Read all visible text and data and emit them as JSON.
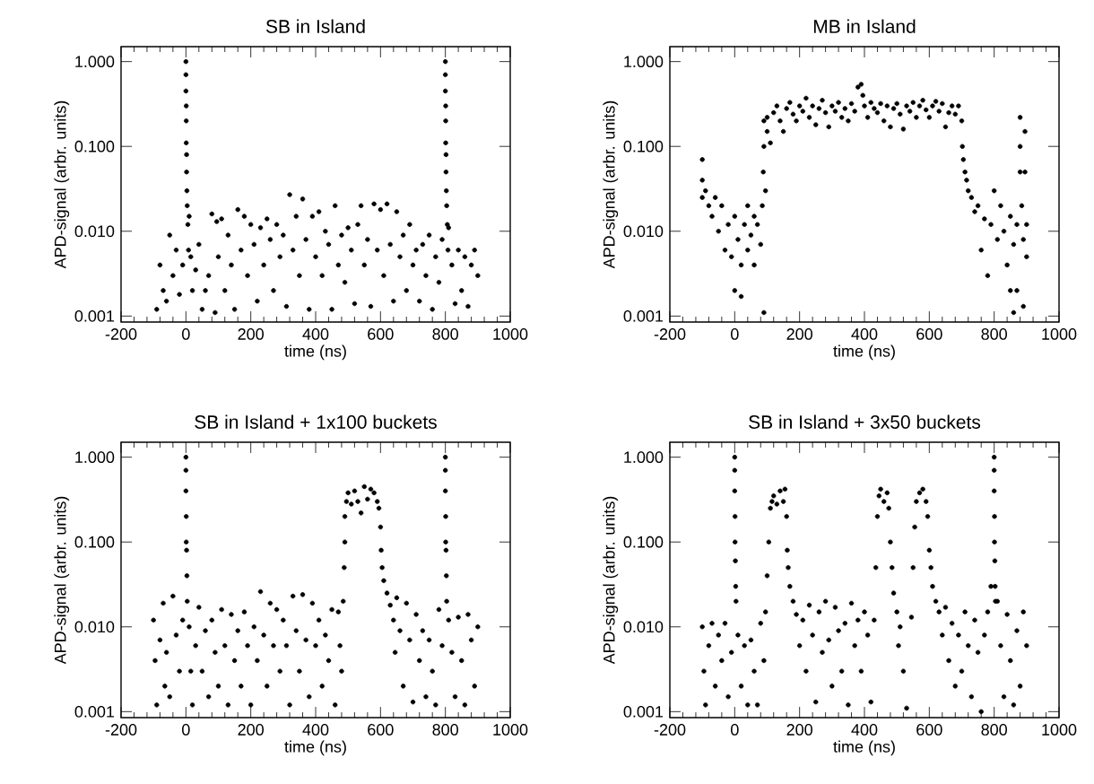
{
  "chart_data": [
    {
      "type": "scatter",
      "title": "SB in Island",
      "xlabel": "time (ns)",
      "ylabel": "APD-signal (arbr. units)",
      "log": "y",
      "marker": "circle",
      "xlim": [
        -200,
        1000
      ],
      "ylim": [
        0.00085,
        1.5
      ],
      "xticks": [
        -200,
        0,
        200,
        400,
        600,
        800,
        1000
      ],
      "yticks": [
        {
          "value": 0.001,
          "label": "0.001"
        },
        {
          "value": 0.01,
          "label": "0.010"
        },
        {
          "value": 0.1,
          "label": "0.100"
        },
        {
          "value": 1,
          "label": "1.000"
        }
      ],
      "series": [
        {
          "color": "#000000",
          "x": [
            -90,
            -80,
            -70,
            -60,
            -50,
            -40,
            -30,
            -20,
            -10,
            0,
            0,
            0,
            1,
            1,
            1,
            2,
            2,
            3,
            4,
            6,
            8,
            10,
            15,
            20,
            30,
            40,
            50,
            60,
            70,
            80,
            90,
            95,
            100,
            110,
            120,
            130,
            140,
            150,
            160,
            170,
            180,
            190,
            200,
            210,
            220,
            230,
            240,
            250,
            260,
            270,
            280,
            290,
            300,
            310,
            320,
            330,
            340,
            350,
            360,
            370,
            380,
            390,
            400,
            410,
            420,
            430,
            440,
            450,
            460,
            470,
            480,
            490,
            500,
            510,
            520,
            530,
            540,
            550,
            560,
            570,
            580,
            590,
            600,
            610,
            620,
            630,
            640,
            650,
            660,
            670,
            680,
            690,
            700,
            710,
            720,
            730,
            740,
            750,
            760,
            770,
            780,
            790,
            800,
            800,
            800,
            801,
            801,
            801,
            802,
            802,
            803,
            804,
            806,
            808,
            810,
            820,
            830,
            840,
            850,
            860,
            870,
            880,
            890,
            900
          ],
          "values": [
            0.0012,
            0.004,
            0.002,
            0.0015,
            0.009,
            0.003,
            0.006,
            0.0018,
            0.004,
            1.0,
            0.7,
            0.45,
            0.3,
            0.2,
            0.11,
            0.08,
            0.05,
            0.03,
            0.02,
            0.012,
            0.006,
            0.015,
            0.005,
            0.002,
            0.0035,
            0.007,
            0.0012,
            0.002,
            0.003,
            0.016,
            0.0011,
            0.013,
            0.005,
            0.014,
            0.002,
            0.009,
            0.004,
            0.0012,
            0.018,
            0.006,
            0.015,
            0.003,
            0.012,
            0.007,
            0.0015,
            0.011,
            0.004,
            0.014,
            0.008,
            0.002,
            0.012,
            0.005,
            0.009,
            0.0013,
            0.027,
            0.006,
            0.015,
            0.003,
            0.024,
            0.008,
            0.0012,
            0.015,
            0.005,
            0.017,
            0.003,
            0.01,
            0.007,
            0.0012,
            0.02,
            0.004,
            0.009,
            0.0025,
            0.011,
            0.006,
            0.0014,
            0.012,
            0.02,
            0.004,
            0.008,
            0.0013,
            0.021,
            0.006,
            0.018,
            0.003,
            0.021,
            0.007,
            0.0015,
            0.017,
            0.005,
            0.009,
            0.002,
            0.012,
            0.004,
            0.006,
            0.0015,
            0.007,
            0.003,
            0.009,
            0.0012,
            0.005,
            0.0025,
            0.008,
            1.0,
            0.7,
            0.45,
            0.3,
            0.2,
            0.11,
            0.08,
            0.05,
            0.03,
            0.02,
            0.012,
            0.006,
            0.011,
            0.004,
            0.0014,
            0.006,
            0.002,
            0.005,
            0.0013,
            0.004,
            0.006,
            0.003
          ]
        }
      ]
    },
    {
      "type": "scatter",
      "title": "MB in Island",
      "xlabel": "time (ns)",
      "ylabel": "APD-signal (arbr. units)",
      "log": "y",
      "marker": "circle",
      "xlim": [
        -200,
        1000
      ],
      "ylim": [
        0.00085,
        1.5
      ],
      "xticks": [
        -200,
        0,
        200,
        400,
        600,
        800,
        1000
      ],
      "yticks": [
        {
          "value": 0.001,
          "label": "0.001"
        },
        {
          "value": 0.01,
          "label": "0.010"
        },
        {
          "value": 0.1,
          "label": "0.100"
        },
        {
          "value": 1,
          "label": "1.000"
        }
      ],
      "series": [
        {
          "color": "#000000",
          "x": [
            -100,
            -100,
            -100,
            -90,
            -80,
            -70,
            -60,
            -50,
            -40,
            -30,
            -20,
            -10,
            0,
            0,
            10,
            20,
            20,
            30,
            40,
            40,
            50,
            60,
            60,
            70,
            80,
            85,
            88,
            90,
            90,
            90,
            95,
            100,
            100,
            110,
            120,
            130,
            140,
            150,
            160,
            170,
            180,
            190,
            200,
            210,
            220,
            230,
            240,
            250,
            260,
            270,
            280,
            290,
            300,
            310,
            320,
            330,
            340,
            350,
            360,
            370,
            380,
            390,
            395,
            400,
            410,
            420,
            430,
            440,
            450,
            460,
            470,
            480,
            490,
            500,
            510,
            520,
            530,
            540,
            550,
            560,
            570,
            580,
            590,
            600,
            610,
            620,
            630,
            640,
            650,
            660,
            670,
            680,
            690,
            700,
            702,
            705,
            710,
            715,
            720,
            730,
            740,
            750,
            760,
            770,
            780,
            790,
            800,
            810,
            820,
            830,
            840,
            850,
            850,
            860,
            860,
            870,
            870,
            880,
            880,
            880,
            885,
            890,
            890,
            895,
            895,
            900,
            900
          ],
          "values": [
            0.07,
            0.04,
            0.025,
            0.03,
            0.02,
            0.015,
            0.025,
            0.01,
            0.02,
            0.006,
            0.012,
            0.005,
            0.015,
            0.002,
            0.008,
            0.004,
            0.0017,
            0.012,
            0.006,
            0.02,
            0.009,
            0.004,
            0.015,
            0.012,
            0.007,
            0.02,
            0.05,
            0.2,
            0.1,
            0.0011,
            0.03,
            0.15,
            0.22,
            0.11,
            0.25,
            0.3,
            0.2,
            0.15,
            0.28,
            0.33,
            0.24,
            0.2,
            0.3,
            0.26,
            0.37,
            0.22,
            0.3,
            0.18,
            0.28,
            0.35,
            0.25,
            0.17,
            0.3,
            0.26,
            0.33,
            0.22,
            0.28,
            0.2,
            0.32,
            0.26,
            0.5,
            0.54,
            0.4,
            0.3,
            0.22,
            0.33,
            0.28,
            0.25,
            0.32,
            0.2,
            0.3,
            0.17,
            0.28,
            0.32,
            0.24,
            0.16,
            0.3,
            0.26,
            0.33,
            0.22,
            0.3,
            0.35,
            0.27,
            0.22,
            0.3,
            0.34,
            0.26,
            0.32,
            0.17,
            0.25,
            0.3,
            0.24,
            0.3,
            0.2,
            0.1,
            0.07,
            0.05,
            0.04,
            0.03,
            0.025,
            0.017,
            0.02,
            0.006,
            0.014,
            0.003,
            0.012,
            0.03,
            0.008,
            0.02,
            0.01,
            0.004,
            0.015,
            0.002,
            0.007,
            0.0011,
            0.012,
            0.002,
            0.22,
            0.1,
            0.05,
            0.02,
            0.008,
            0.0013,
            0.15,
            0.05,
            0.012,
            0.005
          ]
        }
      ]
    },
    {
      "type": "scatter",
      "title": "SB in Island + 1x100 buckets",
      "xlabel": "time (ns)",
      "ylabel": "APD-signal (arbr. units)",
      "log": "y",
      "marker": "circle",
      "xlim": [
        -200,
        1000
      ],
      "ylim": [
        0.00085,
        1.5
      ],
      "xticks": [
        -200,
        0,
        200,
        400,
        600,
        800,
        1000
      ],
      "yticks": [
        {
          "value": 0.001,
          "label": "0.001"
        },
        {
          "value": 0.01,
          "label": "0.010"
        },
        {
          "value": 0.1,
          "label": "0.100"
        },
        {
          "value": 1,
          "label": "1.000"
        }
      ],
      "series": [
        {
          "color": "#000000",
          "x": [
            -100,
            -95,
            -90,
            -80,
            -70,
            -65,
            -60,
            -50,
            -40,
            -30,
            -20,
            -10,
            0,
            0,
            0,
            1,
            1,
            2,
            3,
            4,
            10,
            15,
            20,
            30,
            40,
            50,
            60,
            70,
            80,
            90,
            100,
            110,
            120,
            130,
            140,
            150,
            160,
            170,
            180,
            190,
            200,
            210,
            220,
            230,
            240,
            250,
            260,
            270,
            280,
            290,
            300,
            310,
            320,
            330,
            340,
            350,
            360,
            370,
            380,
            390,
            400,
            410,
            420,
            430,
            440,
            450,
            460,
            470,
            475,
            480,
            485,
            488,
            490,
            490,
            495,
            500,
            510,
            520,
            530,
            540,
            550,
            560,
            570,
            580,
            590,
            595,
            600,
            602,
            605,
            610,
            620,
            630,
            640,
            645,
            650,
            660,
            670,
            680,
            690,
            700,
            710,
            720,
            730,
            740,
            750,
            760,
            770,
            780,
            790,
            800,
            800,
            800,
            801,
            801,
            802,
            803,
            804,
            810,
            820,
            830,
            840,
            850,
            860,
            870,
            880,
            890,
            900
          ],
          "values": [
            0.012,
            0.004,
            0.0012,
            0.007,
            0.019,
            0.002,
            0.005,
            0.0015,
            0.023,
            0.008,
            0.003,
            0.012,
            1.0,
            0.7,
            0.4,
            0.2,
            0.1,
            0.08,
            0.04,
            0.02,
            0.01,
            0.003,
            0.0012,
            0.006,
            0.017,
            0.003,
            0.009,
            0.0015,
            0.012,
            0.005,
            0.002,
            0.016,
            0.006,
            0.0012,
            0.014,
            0.004,
            0.009,
            0.002,
            0.015,
            0.006,
            0.0012,
            0.01,
            0.004,
            0.026,
            0.008,
            0.002,
            0.019,
            0.006,
            0.016,
            0.003,
            0.012,
            0.006,
            0.0012,
            0.023,
            0.009,
            0.003,
            0.024,
            0.007,
            0.0015,
            0.019,
            0.006,
            0.012,
            0.002,
            0.008,
            0.004,
            0.016,
            0.0012,
            0.015,
            0.006,
            0.003,
            0.02,
            0.05,
            0.1,
            0.2,
            0.3,
            0.38,
            0.28,
            0.4,
            0.3,
            0.22,
            0.45,
            0.32,
            0.42,
            0.38,
            0.3,
            0.25,
            0.15,
            0.08,
            0.05,
            0.035,
            0.025,
            0.018,
            0.012,
            0.005,
            0.022,
            0.009,
            0.002,
            0.019,
            0.007,
            0.0013,
            0.014,
            0.004,
            0.009,
            0.0015,
            0.007,
            0.003,
            0.0012,
            0.016,
            0.006,
            1.0,
            0.7,
            0.4,
            0.2,
            0.1,
            0.08,
            0.04,
            0.02,
            0.012,
            0.005,
            0.0015,
            0.013,
            0.004,
            0.0012,
            0.014,
            0.007,
            0.002,
            0.01
          ]
        }
      ]
    },
    {
      "type": "scatter",
      "title": "SB in Island + 3x50 buckets",
      "xlabel": "time (ns)",
      "ylabel": "APD-signal (arbr. units)",
      "log": "y",
      "marker": "circle",
      "xlim": [
        -200,
        1000
      ],
      "ylim": [
        0.00085,
        1.5
      ],
      "xticks": [
        -200,
        0,
        200,
        400,
        600,
        800,
        1000
      ],
      "yticks": [
        {
          "value": 0.001,
          "label": "0.001"
        },
        {
          "value": 0.01,
          "label": "0.010"
        },
        {
          "value": 0.1,
          "label": "0.100"
        },
        {
          "value": 1,
          "label": "1.000"
        }
      ],
      "series": [
        {
          "color": "#000000",
          "x": [
            -100,
            -95,
            -90,
            -80,
            -70,
            -60,
            -50,
            -40,
            -30,
            -20,
            -10,
            0,
            0,
            0,
            1,
            1,
            2,
            3,
            4,
            10,
            20,
            30,
            40,
            50,
            60,
            70,
            80,
            90,
            95,
            100,
            105,
            110,
            115,
            120,
            130,
            140,
            150,
            155,
            160,
            162,
            165,
            170,
            180,
            190,
            200,
            210,
            220,
            230,
            240,
            250,
            260,
            270,
            280,
            290,
            300,
            310,
            320,
            330,
            340,
            350,
            360,
            370,
            380,
            390,
            400,
            410,
            420,
            430,
            435,
            440,
            445,
            450,
            460,
            470,
            475,
            480,
            485,
            490,
            500,
            505,
            510,
            520,
            530,
            545,
            550,
            555,
            560,
            570,
            580,
            590,
            595,
            600,
            605,
            610,
            620,
            630,
            640,
            650,
            660,
            670,
            680,
            690,
            700,
            710,
            720,
            730,
            740,
            750,
            760,
            770,
            780,
            790,
            800,
            800,
            800,
            801,
            801,
            802,
            803,
            804,
            810,
            820,
            830,
            840,
            850,
            860,
            870,
            880,
            890,
            900
          ],
          "values": [
            0.01,
            0.003,
            0.0012,
            0.006,
            0.011,
            0.002,
            0.008,
            0.004,
            0.011,
            0.0015,
            0.005,
            1.0,
            0.7,
            0.4,
            0.2,
            0.1,
            0.06,
            0.03,
            0.02,
            0.008,
            0.002,
            0.006,
            0.0012,
            0.007,
            0.003,
            0.0012,
            0.011,
            0.004,
            0.015,
            0.04,
            0.1,
            0.25,
            0.3,
            0.35,
            0.28,
            0.4,
            0.3,
            0.42,
            0.2,
            0.08,
            0.05,
            0.03,
            0.02,
            0.014,
            0.006,
            0.012,
            0.003,
            0.018,
            0.008,
            0.0013,
            0.015,
            0.005,
            0.02,
            0.007,
            0.002,
            0.017,
            0.009,
            0.003,
            0.011,
            0.0012,
            0.019,
            0.006,
            0.012,
            0.003,
            0.015,
            0.008,
            0.0013,
            0.012,
            0.05,
            0.2,
            0.35,
            0.42,
            0.3,
            0.38,
            0.25,
            0.1,
            0.05,
            0.025,
            0.015,
            0.006,
            0.01,
            0.003,
            0.0011,
            0.013,
            0.05,
            0.15,
            0.3,
            0.38,
            0.42,
            0.3,
            0.2,
            0.08,
            0.05,
            0.03,
            0.02,
            0.015,
            0.008,
            0.017,
            0.004,
            0.011,
            0.002,
            0.008,
            0.003,
            0.015,
            0.006,
            0.0015,
            0.012,
            0.005,
            0.001,
            0.008,
            0.015,
            0.03,
            1.0,
            0.7,
            0.4,
            0.2,
            0.1,
            0.06,
            0.03,
            0.02,
            0.02,
            0.006,
            0.0015,
            0.014,
            0.004,
            0.0012,
            0.009,
            0.002,
            0.015,
            0.006
          ]
        }
      ]
    }
  ]
}
